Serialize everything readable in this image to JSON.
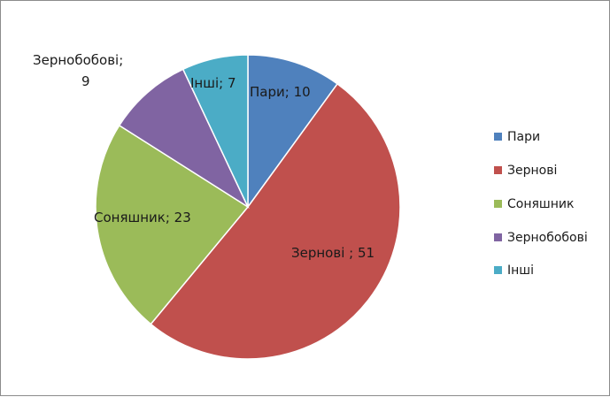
{
  "chart_data": {
    "type": "pie",
    "categories": [
      "Пари",
      "Зернові",
      "Соняшник",
      "Зернобобові",
      "Інші"
    ],
    "values": [
      10,
      51,
      23,
      9,
      7
    ],
    "data_labels": [
      "Пари; 10",
      "Зернові ; 51",
      "Соняшник; 23",
      "Зернобобові;",
      "Інші; 7"
    ],
    "data_label_extra": "9",
    "legend_position": "right",
    "start_angle_deg": 0,
    "direction": "clockwise"
  },
  "colors": [
    "#4F81BD",
    "#C0504D",
    "#9BBB59",
    "#8064A2",
    "#4BACC6"
  ]
}
